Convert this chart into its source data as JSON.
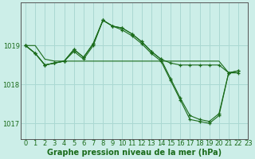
{
  "title": "Graphe pression niveau de la mer (hPa)",
  "bg_color": "#cceee8",
  "grid_color": "#aad8d2",
  "line_color": "#1a6b1a",
  "xlim": [
    -0.5,
    23
  ],
  "ylim": [
    1016.6,
    1020.1
  ],
  "yticks": [
    1017,
    1018,
    1019
  ],
  "xticks": [
    0,
    1,
    2,
    3,
    4,
    5,
    6,
    7,
    8,
    9,
    10,
    11,
    12,
    13,
    14,
    15,
    16,
    17,
    18,
    19,
    20,
    21,
    22,
    23
  ],
  "series": [
    {
      "x": [
        0,
        1,
        2,
        3,
        4,
        5,
        6,
        7,
        8,
        9,
        10,
        11,
        12,
        13,
        14,
        15,
        16,
        17,
        18,
        19,
        20,
        21,
        22
      ],
      "y": [
        1019.0,
        1019.0,
        1018.65,
        1018.6,
        1018.6,
        1018.6,
        1018.6,
        1018.6,
        1018.6,
        1018.6,
        1018.6,
        1018.6,
        1018.6,
        1018.6,
        1018.6,
        1018.6,
        1018.6,
        1018.6,
        1018.6,
        1018.6,
        1018.6,
        1018.3,
        1018.3
      ],
      "has_markers": false
    },
    {
      "x": [
        0,
        1,
        2,
        3,
        4,
        5,
        6,
        7,
        8,
        9,
        10,
        11,
        12,
        13,
        14,
        15,
        16,
        17,
        18,
        19,
        20,
        21,
        22
      ],
      "y": [
        1019.0,
        1018.8,
        1018.5,
        1018.55,
        1018.6,
        1018.9,
        1018.7,
        1019.05,
        1019.65,
        1019.5,
        1019.45,
        1019.3,
        1019.1,
        1018.85,
        1018.65,
        1018.55,
        1018.5,
        1018.5,
        1018.5,
        1018.5,
        1018.5,
        1018.3,
        1018.3
      ],
      "has_markers": true
    },
    {
      "x": [
        0,
        1,
        2,
        3,
        4,
        5,
        6,
        7,
        8,
        9,
        10,
        11,
        12,
        13,
        14,
        15,
        16,
        17,
        18,
        19,
        20,
        21,
        22
      ],
      "y": [
        1019.0,
        1018.8,
        1018.5,
        1018.55,
        1018.6,
        1018.9,
        1018.7,
        1019.05,
        1019.65,
        1019.5,
        1019.45,
        1019.3,
        1019.1,
        1018.85,
        1018.65,
        1018.15,
        1017.65,
        1017.2,
        1017.1,
        1017.05,
        1017.25,
        1018.3,
        1018.35
      ],
      "has_markers": true
    },
    {
      "x": [
        0,
        1,
        2,
        3,
        4,
        5,
        6,
        7,
        8,
        9,
        10,
        11,
        12,
        13,
        14,
        15,
        16,
        17,
        18,
        19,
        20,
        21,
        22
      ],
      "y": [
        1019.0,
        1018.8,
        1018.5,
        1018.55,
        1018.6,
        1018.85,
        1018.65,
        1019.0,
        1019.65,
        1019.5,
        1019.4,
        1019.25,
        1019.05,
        1018.8,
        1018.6,
        1018.1,
        1017.6,
        1017.1,
        1017.05,
        1017.0,
        1017.2,
        1018.3,
        1018.35
      ],
      "has_markers": true
    }
  ],
  "axis_color": "#555555",
  "tick_label_fontsize": 6,
  "title_fontsize": 7
}
